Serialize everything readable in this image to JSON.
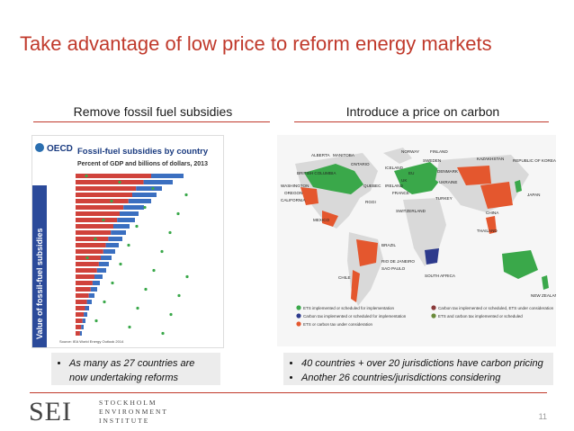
{
  "slide": {
    "title": "Take advantage of low price to reform energy markets",
    "page_number": "11"
  },
  "left": {
    "heading": "Remove fossil fuel subsidies",
    "bullets": [
      "As many as 27 countries are now undertaking reforms"
    ],
    "chart": {
      "publisher": "OECD",
      "title": "Fossil-fuel subsidies by country",
      "subtitle": "Percent of GDP and billions of dollars, 2013",
      "side_label": "Value of fossil-fuel subsidies",
      "source": "Source: IEA World Energy Outlook 2014"
    }
  },
  "right": {
    "heading": "Introduce a price on carbon",
    "bullets": [
      "40 countries + over 20 jurisdictions have carbon pricing",
      "Another 26 countries/jurisdictions considering"
    ],
    "map_labels": [
      "ALBERTA",
      "MANITOBA",
      "ONTARIO",
      "BRITISH COLUMBIA",
      "QUEBEC",
      "WASHINGTON",
      "OREGON",
      "CALIFORNIA",
      "RGGI",
      "MEXICO",
      "ICELAND",
      "NORWAY",
      "SWEDEN",
      "FINLAND",
      "EU",
      "DENMARK",
      "UK",
      "IRELAND",
      "FRANCE",
      "SWITZERLAND",
      "UKRAINE",
      "TURKEY",
      "KAZAKHSTAN",
      "CHINA",
      "REPUBLIC OF KOREA",
      "JAPAN",
      "THAILAND",
      "BRAZIL",
      "RIO DE JANEIRO",
      "SAO PAULO",
      "CHILE",
      "SOUTH AFRICA",
      "NEW ZEALAND"
    ],
    "legend": [
      {
        "text": "ETS implemented or scheduled for implementation",
        "color": "#3aa84a"
      },
      {
        "text": "Carbon tax implemented or scheduled for implementation",
        "color": "#2d3a8c"
      },
      {
        "text": "ETS or carbon tax under consideration",
        "color": "#e4572e"
      },
      {
        "text": "Carbon tax implemented or scheduled, ETS under consideration",
        "color": "#8a3a3a"
      },
      {
        "text": "ETS and carbon tax implemented or scheduled",
        "color": "#6a8a3a"
      }
    ]
  },
  "logo": {
    "big": "SEI",
    "line1": "STOCKHOLM",
    "line2": "ENVIRONMENT",
    "line3": "INSTITUTE"
  },
  "colors": {
    "accent": "#c0392b",
    "chart_blue": "#2b4a9a",
    "bar_red": "#d0423b",
    "bar_blue": "#3b6fc0",
    "map_green": "#3aa84a",
    "map_orange": "#e4572e"
  }
}
